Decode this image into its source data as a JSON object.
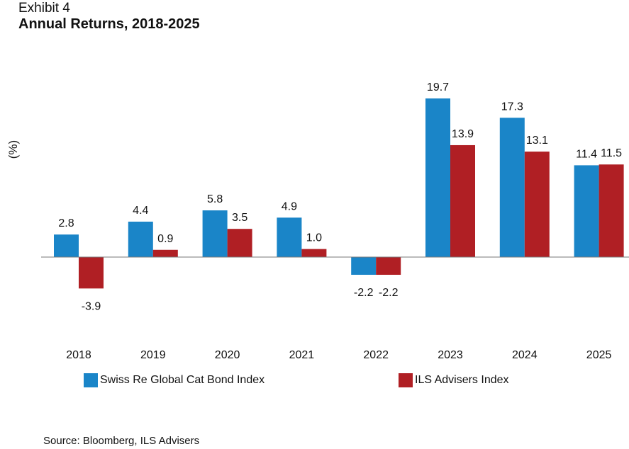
{
  "exhibit": "Exhibit 4",
  "chart_data": {
    "type": "bar",
    "title": "Annual Returns, 2018-2025",
    "ylabel": "(%)",
    "xlabel": "",
    "categories": [
      "2018",
      "2019",
      "2020",
      "2021",
      "2022",
      "2023",
      "2024",
      "2025"
    ],
    "series": [
      {
        "name": "Swiss Re Global Cat Bond Index",
        "color": "#1a85c8",
        "values": [
          2.8,
          4.4,
          5.8,
          4.9,
          -2.2,
          19.7,
          17.3,
          11.4
        ],
        "labels": [
          "2.8",
          "4.4",
          "5.8",
          "4.9",
          "-2.2",
          "19.7",
          "17.3",
          "11.4"
        ]
      },
      {
        "name": "ILS Advisers Index",
        "color": "#b01f24",
        "values": [
          -3.9,
          0.9,
          3.5,
          1.0,
          -2.2,
          13.9,
          13.1,
          11.5
        ],
        "labels": [
          "-3.9",
          "0.9",
          "3.5",
          "1.0",
          "-2.2",
          "13.9",
          "13.1",
          "11.5"
        ]
      }
    ],
    "legend": "bottom",
    "grid": false
  },
  "source": "Source: Bloomberg, ILS Advisers"
}
